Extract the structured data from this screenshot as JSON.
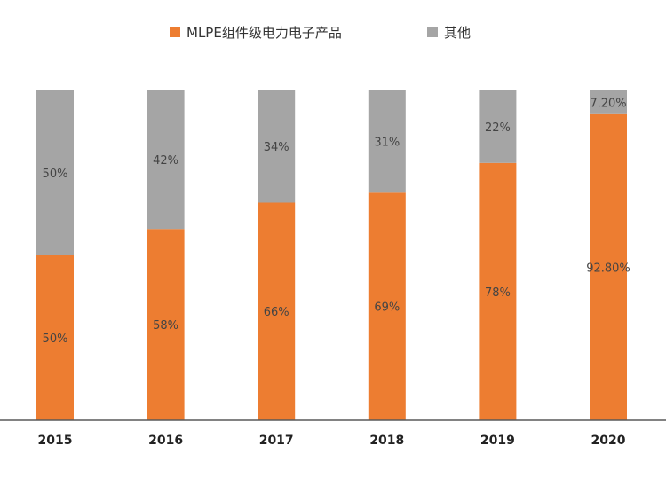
{
  "colors": {
    "primary": "#ED7D31",
    "other": "#A5A5A5",
    "axis": "#595959"
  },
  "chart_data": {
    "type": "bar",
    "stacked": true,
    "categories": [
      "2015",
      "2016",
      "2017",
      "2018",
      "2019",
      "2020"
    ],
    "series": [
      {
        "name": "MLPE组件级电力电子产品",
        "values": [
          50,
          58,
          66,
          69,
          78,
          92.8
        ],
        "labels": [
          "50%",
          "58%",
          "66%",
          "69%",
          "78%",
          "92.80%"
        ]
      },
      {
        "name": "其他",
        "values": [
          50,
          42,
          34,
          31,
          22,
          7.2
        ],
        "labels": [
          "50%",
          "42%",
          "34%",
          "31%",
          "22%",
          "7.20%"
        ]
      }
    ],
    "ylim": [
      0,
      100
    ],
    "grid": false,
    "legend_position": "top-center"
  }
}
